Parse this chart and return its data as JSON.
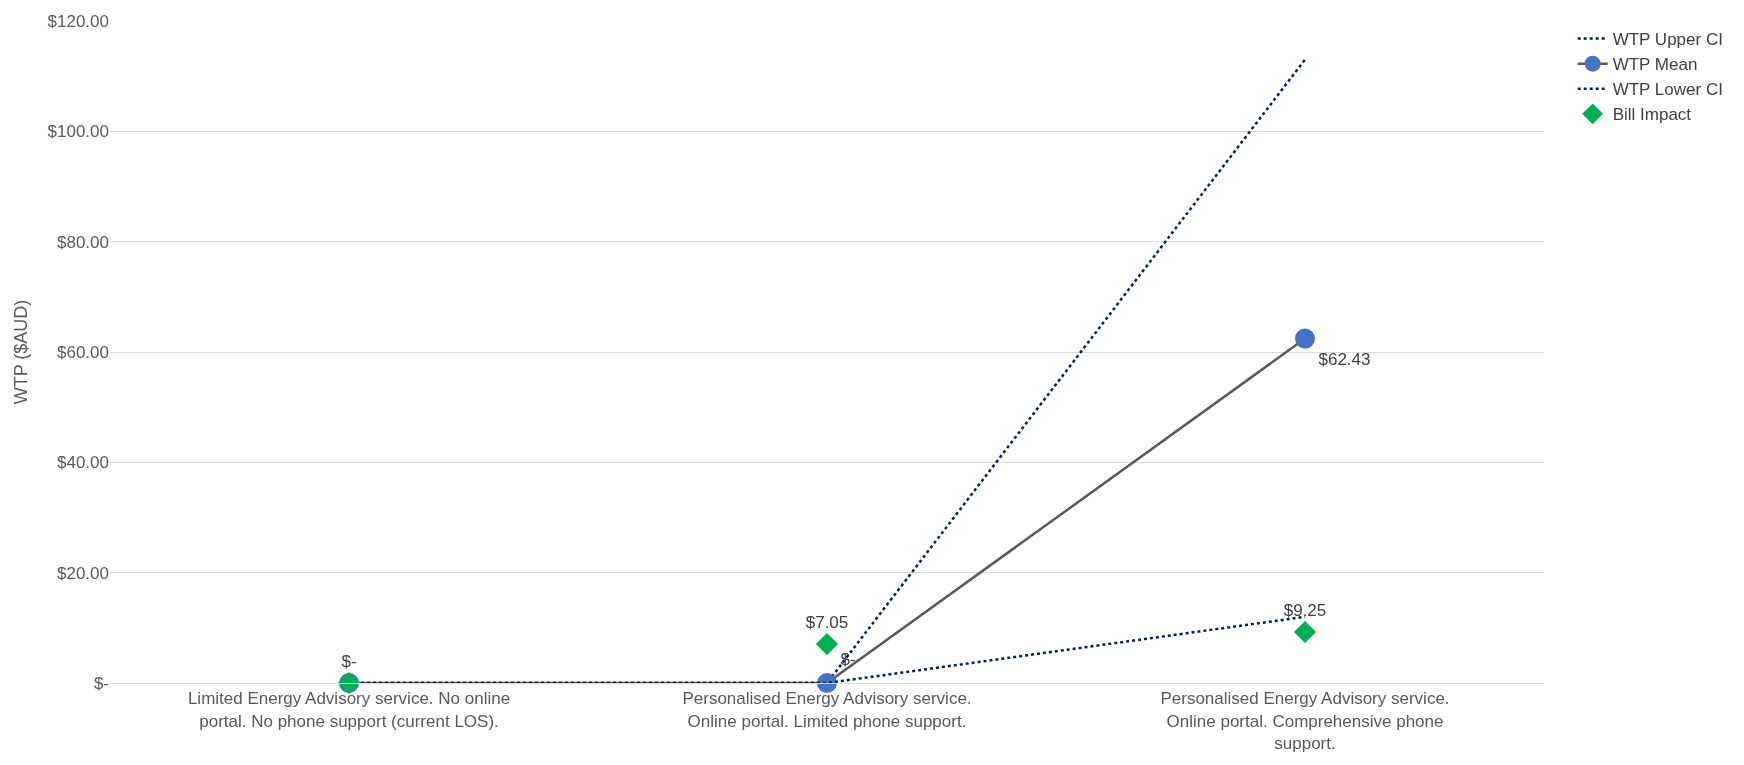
{
  "chart_data": {
    "type": "line",
    "ylabel": "WTP ($AUD)",
    "categories": [
      "Limited Energy Advisory service. No online portal. No phone support (current LOS).",
      "Personalised Energy Advisory service. Online portal. Limited phone support.",
      "Personalised Energy Advisory service. Online portal. Comprehensive phone support."
    ],
    "series": [
      {
        "name": "WTP Upper CI",
        "color": "#002060",
        "values": [
          0,
          0,
          113
        ],
        "line_style": "dotted"
      },
      {
        "name": "WTP Mean",
        "color": "#595959",
        "values": [
          0,
          0,
          62.43
        ],
        "line_style": "solid",
        "marker": "circle",
        "colors": [
          "#4472c4",
          "#4472c4",
          "#4472c4"
        ],
        "value_labels": [
          null,
          "$-",
          "$62.43"
        ]
      },
      {
        "name": "WTP Lower CI",
        "color": "#002060",
        "values": [
          0,
          0,
          12
        ],
        "line_style": "dotted"
      },
      {
        "name": "Bill Impact",
        "type": "scatter",
        "color": "#00b050",
        "values": [
          0,
          7.05,
          9.25
        ],
        "marker": "diamond",
        "value_labels": [
          "$-",
          "$7.05",
          "$9.25"
        ]
      }
    ],
    "ylim": [
      0,
      120
    ],
    "yticks": [
      {
        "value": 0,
        "label": "$-"
      },
      {
        "value": 20,
        "label": "$20.00"
      },
      {
        "value": 40,
        "label": "$40.00"
      },
      {
        "value": 60,
        "label": "$60.00"
      },
      {
        "value": 80,
        "label": "$80.00"
      },
      {
        "value": 100,
        "label": "$100.00"
      },
      {
        "value": 120,
        "label": "$120.00"
      }
    ],
    "grid": "y",
    "legend": "right"
  }
}
